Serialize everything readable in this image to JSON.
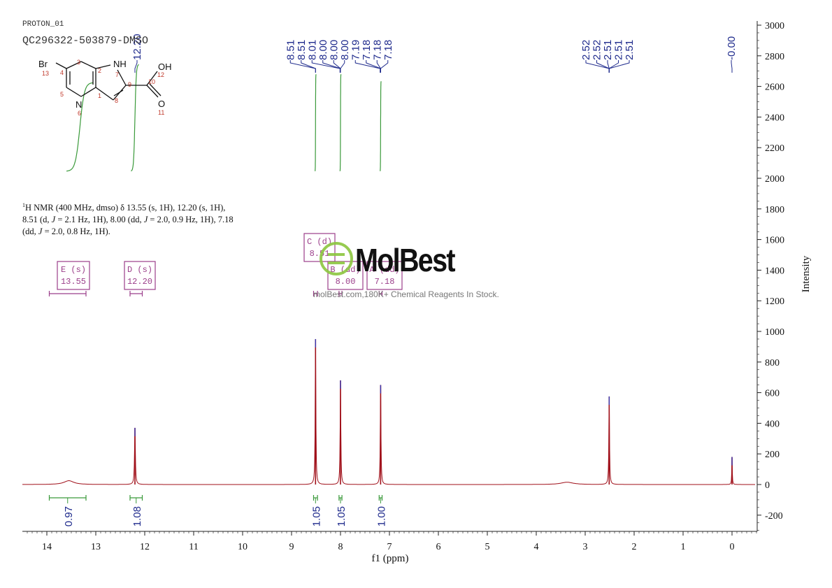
{
  "file_label": "PROTON_01",
  "sample_label": "QC296322-503879-DMSO",
  "nmr_description": {
    "line1": "H NMR (400 MHz, dmso) δ 13.55 (s, 1H), 12.20 (s, 1H),",
    "line1_sup": "1",
    "line2a": "8.51 (d, ",
    "line2b": " = 2.1 Hz, 1H), 8.00 (dd, ",
    "line2c": " = 2.0, 0.9 Hz, 1H), 7.18",
    "line3a": "(dd, ",
    "line3b": " = 2.0, 0.8 Hz, 1H).",
    "j": "J"
  },
  "watermark": {
    "brand": "MolBest",
    "url": "molBest.com,180K+ Chemical Reagents In Stock.",
    "color": "#8cc63f"
  },
  "structure": {
    "atoms": {
      "br": "Br",
      "n13": "13",
      "n4": "4",
      "n3": "3",
      "n2": "2",
      "nh": "NH",
      "n7": "7",
      "n9": "9",
      "n10": "10",
      "oh": "OH",
      "n12": "12",
      "n5": "5",
      "n1": "1",
      "n8": "8",
      "n": "N",
      "n6": "6",
      "o": "O",
      "n11": "11"
    }
  },
  "colors": {
    "spectrum": "#a0101a",
    "integral_curve": "#3a9a3a",
    "peak_label": "#1e2a8c",
    "multiplet_box": "#9b3e8a",
    "axis": "#222222"
  },
  "chart_data": {
    "type": "line",
    "xlabel": "f1 (ppm)",
    "ylabel": "Intensity",
    "xlim": [
      14.5,
      -0.5
    ],
    "x_reversed": true,
    "ylim": [
      -300,
      3000
    ],
    "x_ticks": [
      "14",
      "13",
      "12",
      "11",
      "10",
      "9",
      "8",
      "7",
      "6",
      "5",
      "4",
      "3",
      "2",
      "1",
      "0"
    ],
    "y_ticks": [
      "3000",
      "2800",
      "2600",
      "2400",
      "2200",
      "2000",
      "1800",
      "1600",
      "1400",
      "1200",
      "1000",
      "800",
      "600",
      "400",
      "200",
      "0",
      "-200"
    ],
    "peaks": [
      {
        "ppm": 13.55,
        "height": 25,
        "width": 0.12
      },
      {
        "ppm": 12.2,
        "height": 370,
        "width": 0.01
      },
      {
        "ppm": 8.51,
        "height": 950,
        "width": 0.008
      },
      {
        "ppm": 8.0,
        "height": 680,
        "width": 0.008
      },
      {
        "ppm": 7.18,
        "height": 650,
        "width": 0.008
      },
      {
        "ppm": 2.51,
        "height": 575,
        "width": 0.008
      },
      {
        "ppm": 3.37,
        "height": 15,
        "width": 0.15
      },
      {
        "ppm": 0.0,
        "height": 180,
        "width": 0.006
      }
    ],
    "peak_labels": [
      {
        "group": "left",
        "values": [
          "8.51",
          "8.51",
          "8.01",
          "8.00",
          "8.00",
          "8.00",
          "7.19",
          "7.18",
          "7.18",
          "7.18"
        ]
      },
      {
        "group": "dmso",
        "values": [
          "2.52",
          "2.52",
          "2.51",
          "2.51",
          "2.51"
        ]
      },
      {
        "group": "tms",
        "values": [
          "-0.00"
        ]
      },
      {
        "group": "nh",
        "values": [
          "12.20"
        ]
      }
    ],
    "integrals": [
      {
        "from": 13.95,
        "to": 13.2,
        "value": "0.97"
      },
      {
        "from": 12.3,
        "to": 12.05,
        "value": "1.08"
      },
      {
        "from": 8.55,
        "to": 8.47,
        "value": "1.05"
      },
      {
        "from": 8.03,
        "to": 7.97,
        "value": "1.05"
      },
      {
        "from": 7.21,
        "to": 7.15,
        "value": "1.00"
      }
    ],
    "multiplets": [
      {
        "label": "E (s)",
        "value": "13.55",
        "range": [
          13.95,
          13.2
        ]
      },
      {
        "label": "D (s)",
        "value": "12.20",
        "range": [
          12.3,
          12.05
        ]
      },
      {
        "label": "C (d)",
        "value": "8.51",
        "range": [
          8.55,
          8.47
        ]
      },
      {
        "label": "B (dd)",
        "value": "8.00",
        "range": [
          8.03,
          7.97
        ]
      },
      {
        "label": "A (dd)",
        "value": "7.18",
        "range": [
          7.21,
          7.15
        ]
      }
    ]
  }
}
